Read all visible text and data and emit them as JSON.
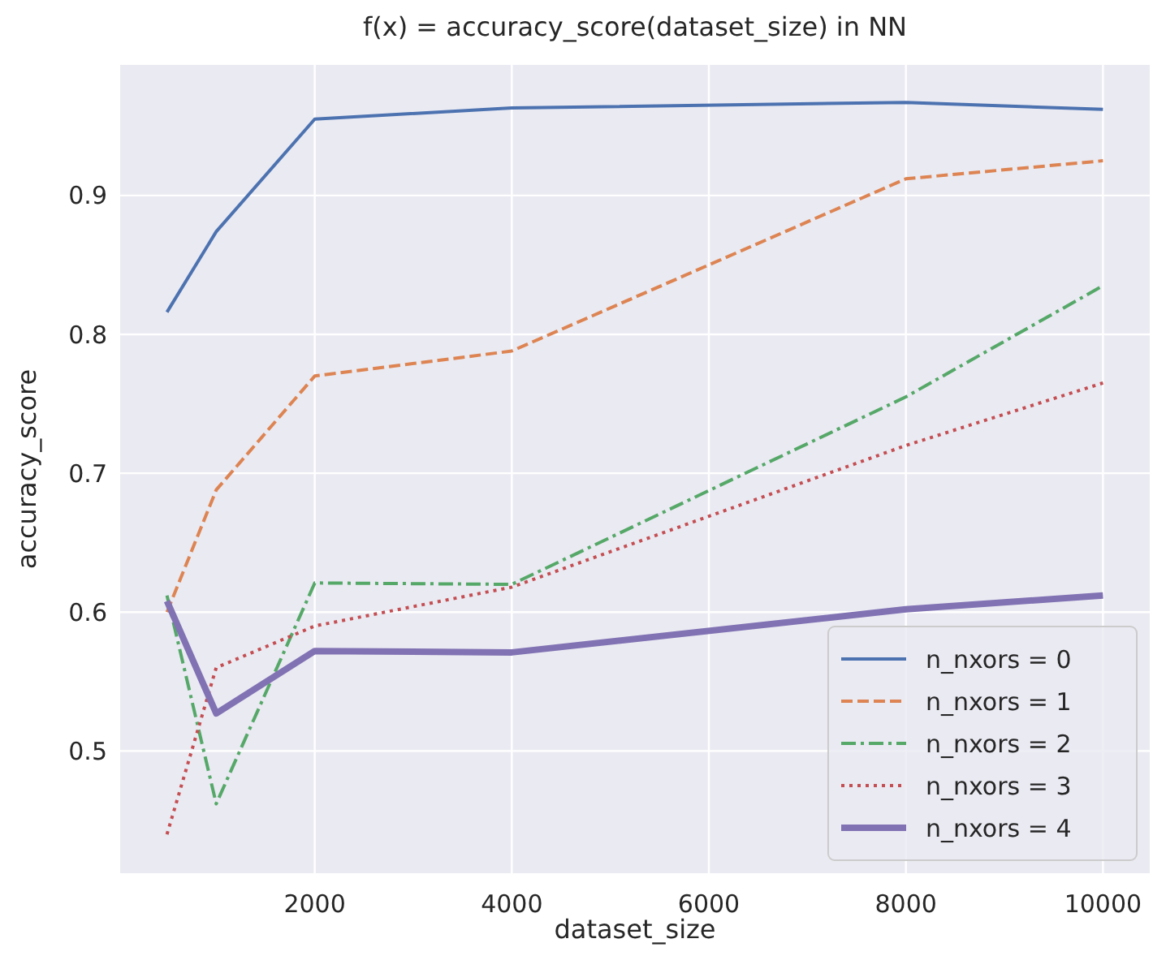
{
  "chart_data": {
    "type": "line",
    "title": "f(x) = accuracy_score(dataset_size) in NN",
    "xlabel": "dataset_size",
    "ylabel": "accuracy_score",
    "x": [
      500,
      1000,
      2000,
      4000,
      8000,
      10000
    ],
    "xlim": [
      25,
      10475
    ],
    "xticks": [
      2000,
      4000,
      6000,
      8000,
      10000
    ],
    "ylim": [
      0.412,
      0.994
    ],
    "yticks": [
      0.5,
      0.6,
      0.7,
      0.8,
      0.9
    ],
    "grid": true,
    "legend": "bottom right",
    "marker": "none",
    "series": [
      {
        "name": "n_nxors = 0",
        "color": "#4c72b0",
        "line_style": "solid",
        "values": [
          0.816,
          0.874,
          0.955,
          0.963,
          0.967,
          0.962
        ]
      },
      {
        "name": "n_nxors = 1",
        "color": "#dd8452",
        "line_style": "dashed",
        "values": [
          0.6,
          0.688,
          0.77,
          0.788,
          0.912,
          0.925
        ]
      },
      {
        "name": "n_nxors = 2",
        "color": "#55a868",
        "line_style": "dashdot",
        "values": [
          0.612,
          0.462,
          0.621,
          0.62,
          0.755,
          0.835
        ]
      },
      {
        "name": "n_nxors = 3",
        "color": "#c44e52",
        "line_style": "dotted",
        "values": [
          0.44,
          0.56,
          0.59,
          0.618,
          0.72,
          0.765
        ]
      },
      {
        "name": "n_nxors = 4",
        "color": "#8172b3",
        "line_style": "solid",
        "values": [
          0.608,
          0.527,
          0.572,
          0.571,
          0.602,
          0.612
        ]
      }
    ]
  }
}
